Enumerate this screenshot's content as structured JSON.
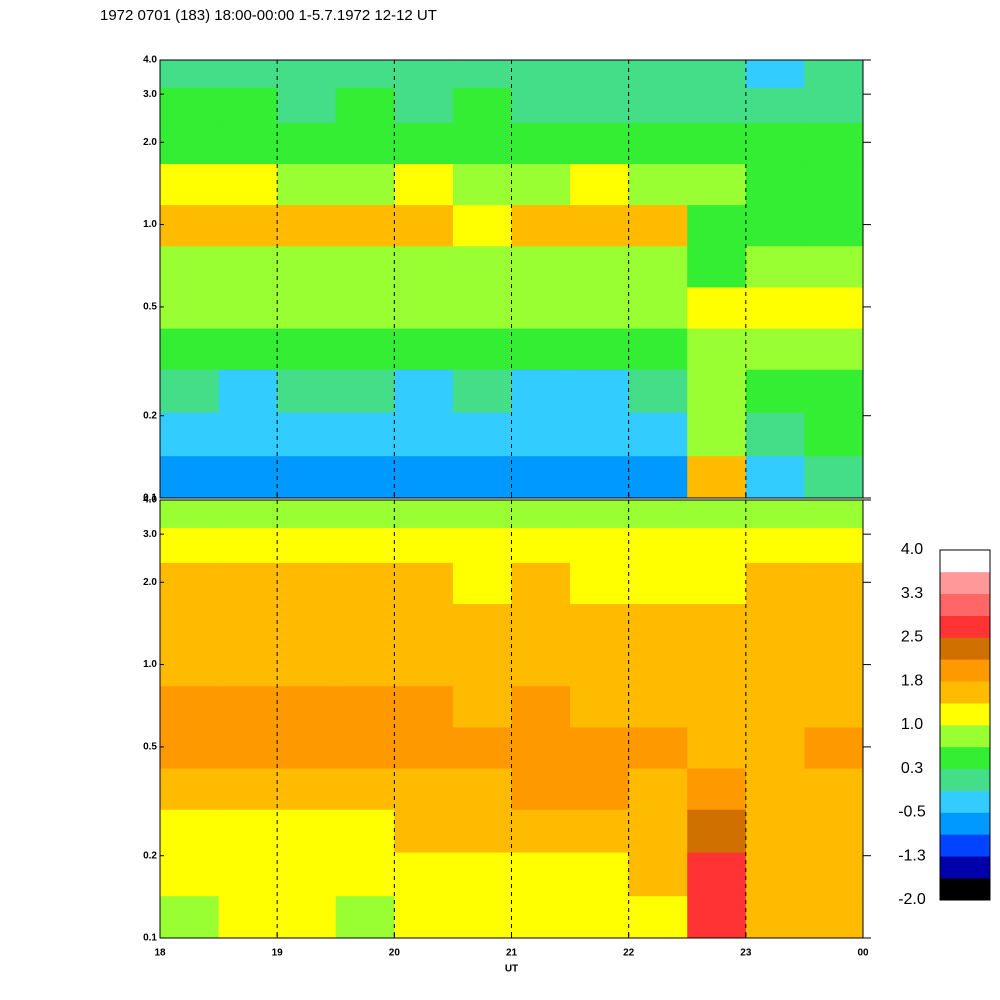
{
  "chart_data": [
    {
      "type": "heatmap",
      "title": "1972 0701 (183) 18:00-00:00 1-5.7.1972  12-12 UT",
      "x": [
        18.25,
        18.75,
        19.25,
        19.75,
        20.25,
        20.75,
        21.25,
        21.75,
        22.25,
        22.75,
        23.25,
        23.75
      ],
      "y": [
        0.12,
        0.17,
        0.25,
        0.35,
        0.5,
        0.7,
        1.0,
        1.4,
        2.0,
        2.8,
        3.6
      ],
      "z": [
        [
          -0.6,
          -0.7,
          -0.6,
          -0.6,
          -0.7,
          -0.6,
          -0.6,
          -0.7,
          -0.6,
          1.6,
          -0.2,
          0.0
        ],
        [
          -0.4,
          -0.5,
          -0.4,
          -0.4,
          -0.5,
          -0.4,
          -0.4,
          -0.5,
          -0.4,
          0.9,
          0.2,
          0.3
        ],
        [
          -0.1,
          -0.2,
          -0.1,
          -0.1,
          -0.2,
          -0.1,
          -0.2,
          -0.2,
          -0.1,
          0.8,
          0.5,
          0.6
        ],
        [
          0.4,
          0.4,
          0.4,
          0.3,
          0.4,
          0.4,
          0.4,
          0.3,
          0.4,
          0.9,
          0.8,
          0.9
        ],
        [
          0.8,
          0.7,
          0.8,
          0.8,
          0.7,
          0.8,
          0.7,
          0.8,
          0.7,
          1.1,
          1.0,
          1.1
        ],
        [
          0.7,
          0.8,
          0.7,
          0.7,
          0.8,
          0.7,
          0.8,
          0.7,
          0.8,
          0.6,
          0.7,
          0.7
        ],
        [
          1.5,
          1.6,
          1.4,
          1.5,
          1.5,
          1.3,
          1.6,
          1.5,
          1.5,
          0.6,
          0.5,
          0.6
        ],
        [
          1.0,
          1.2,
          0.9,
          0.9,
          1.0,
          0.9,
          0.9,
          1.0,
          0.9,
          0.7,
          0.6,
          0.6
        ],
        [
          0.6,
          0.6,
          0.5,
          0.6,
          0.6,
          0.5,
          0.6,
          0.5,
          0.5,
          0.4,
          0.4,
          0.3
        ],
        [
          0.3,
          0.3,
          0.2,
          0.3,
          0.2,
          0.3,
          0.2,
          0.2,
          0.2,
          0.1,
          0.0,
          0.0
        ],
        [
          0.1,
          0.0,
          0.1,
          0.0,
          0.0,
          0.1,
          0.0,
          0.0,
          -0.1,
          -0.1,
          -0.2,
          -0.1
        ]
      ],
      "xlim": [
        18,
        24
      ],
      "xticks": [
        18,
        19,
        20,
        21,
        22,
        23,
        {
          "value": 24,
          "label": "00"
        }
      ],
      "xtick_labels": false,
      "ylim": [
        0.1,
        4
      ],
      "yticks": [
        {
          "value": 0.1,
          "label": "0.1"
        },
        {
          "value": 0.2,
          "label": "0.2"
        },
        {
          "value": 0.5,
          "label": "0.5"
        },
        {
          "value": 1,
          "label": "1.0"
        },
        {
          "value": 2,
          "label": "2.0"
        },
        {
          "value": 3,
          "label": "3.0"
        },
        {
          "value": 4,
          "label": "4.0"
        }
      ],
      "log_y": true,
      "grid": true
    },
    {
      "type": "heatmap",
      "x_label": "UT",
      "x": [
        18.25,
        18.75,
        19.25,
        19.75,
        20.25,
        20.75,
        21.25,
        21.75,
        22.25,
        22.75,
        23.25,
        23.75
      ],
      "y": [
        0.12,
        0.17,
        0.25,
        0.35,
        0.5,
        0.7,
        1.0,
        1.4,
        2.0,
        2.8,
        3.6
      ],
      "z": [
        [
          0.9,
          1.0,
          1.0,
          0.9,
          1.1,
          1.0,
          1.2,
          1.1,
          1.3,
          2.6,
          1.6,
          1.6
        ],
        [
          1.0,
          1.1,
          1.0,
          1.1,
          1.1,
          1.2,
          1.3,
          1.3,
          1.4,
          2.6,
          1.6,
          1.7
        ],
        [
          1.2,
          1.3,
          1.2,
          1.3,
          1.4,
          1.5,
          1.6,
          1.6,
          1.6,
          2.2,
          1.6,
          1.6
        ],
        [
          1.6,
          1.6,
          1.5,
          1.6,
          1.6,
          1.7,
          1.8,
          1.8,
          1.7,
          1.8,
          1.7,
          1.7
        ],
        [
          2.0,
          2.0,
          1.9,
          1.9,
          1.8,
          1.8,
          2.0,
          1.8,
          1.8,
          1.7,
          1.7,
          1.8
        ],
        [
          1.9,
          2.1,
          1.9,
          2.0,
          1.8,
          1.7,
          1.9,
          1.7,
          1.6,
          1.6,
          1.6,
          1.6
        ],
        [
          1.6,
          1.7,
          1.6,
          1.7,
          1.6,
          1.5,
          1.6,
          1.5,
          1.5,
          1.5,
          1.5,
          1.6
        ],
        [
          1.5,
          1.5,
          1.5,
          1.5,
          1.4,
          1.4,
          1.5,
          1.4,
          1.4,
          1.4,
          1.5,
          1.5
        ],
        [
          1.4,
          1.4,
          1.4,
          1.4,
          1.4,
          1.3,
          1.4,
          1.3,
          1.3,
          1.3,
          1.4,
          1.4
        ],
        [
          1.3,
          1.2,
          1.3,
          1.2,
          1.2,
          1.2,
          1.2,
          1.2,
          1.2,
          1.1,
          1.2,
          1.2
        ],
        [
          0.8,
          0.8,
          0.8,
          0.7,
          0.8,
          0.7,
          0.8,
          0.7,
          0.7,
          0.7,
          0.8,
          0.8
        ]
      ],
      "xlim": [
        18,
        24
      ],
      "xticks": [
        18,
        19,
        20,
        21,
        22,
        23,
        {
          "value": 24,
          "label": "00"
        }
      ],
      "xtick_labels": true,
      "ylim": [
        0.1,
        4
      ],
      "yticks": [
        {
          "value": 0.1,
          "label": "0.1"
        },
        {
          "value": 0.2,
          "label": "0.2"
        },
        {
          "value": 0.5,
          "label": "0.5"
        },
        {
          "value": 1,
          "label": "1.0"
        },
        {
          "value": 2,
          "label": "2.0"
        },
        {
          "value": 3,
          "label": "3.0"
        },
        {
          "value": 4,
          "label": "4.0"
        }
      ],
      "log_y": true,
      "grid": true
    }
  ],
  "colorbar": {
    "lim": [
      -2,
      4
    ],
    "colors": [
      "#000000",
      "#0000aa",
      "#0044ff",
      "#0099ff",
      "#33ccff",
      "#44dd88",
      "#33ee33",
      "#99ff33",
      "#ffff00",
      "#ffbb00",
      "#ff9900",
      "#d07000",
      "#ff3333",
      "#ff6666",
      "#ff9999",
      "#ffffff"
    ],
    "ticks": [
      {
        "value": -2,
        "label": "-2.0"
      },
      {
        "value": -1.25,
        "label": "-1.3"
      },
      {
        "value": -0.5,
        "label": "-0.5"
      },
      {
        "value": 0.25,
        "label": "0.3"
      },
      {
        "value": 1,
        "label": "1.0"
      },
      {
        "value": 1.75,
        "label": "1.8"
      },
      {
        "value": 2.5,
        "label": "2.5"
      },
      {
        "value": 3.25,
        "label": "3.3"
      },
      {
        "value": 4,
        "label": "4.0"
      }
    ]
  }
}
